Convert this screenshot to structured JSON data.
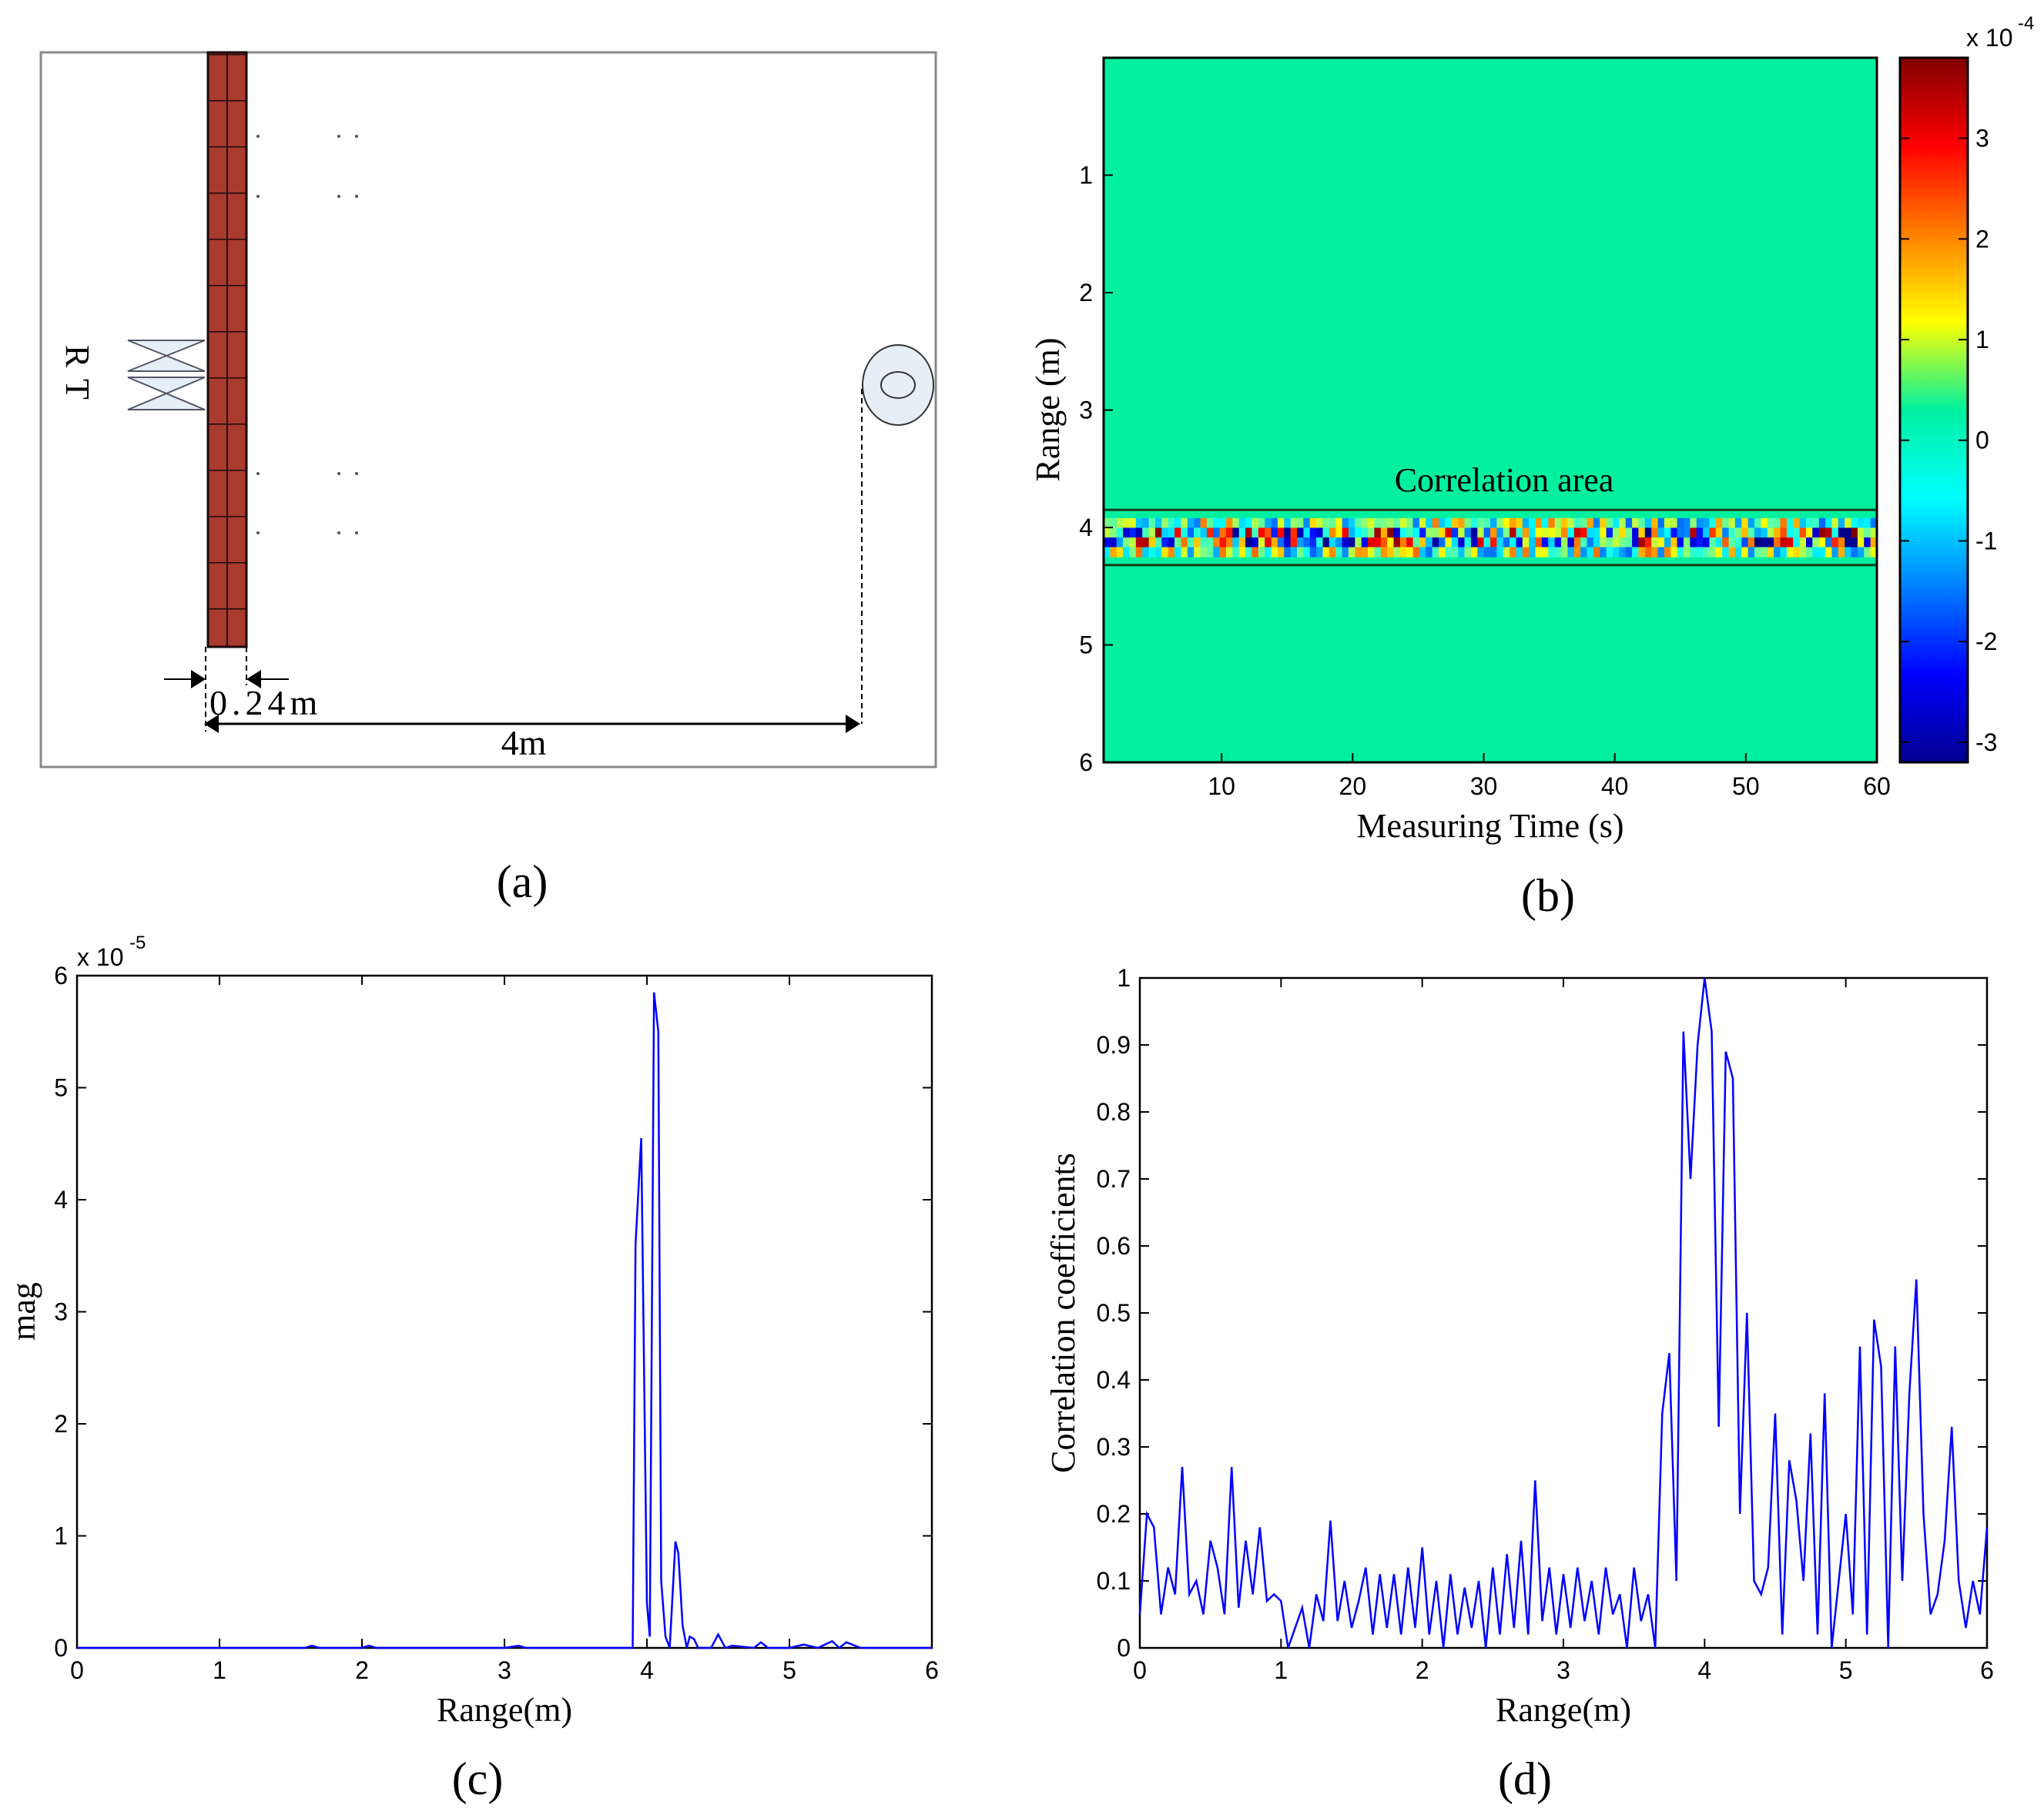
{
  "colors": {
    "wall": "#a83a2e",
    "antenna": "#e6eef8",
    "line": "#0000ff",
    "field": "#00f0a0"
  },
  "panel_a": {
    "caption": "(a)",
    "label_r": "R",
    "label_t": "T",
    "wall_width": "0.24m",
    "distance": "4m"
  },
  "panel_b": {
    "caption": "(b)",
    "annotation": "Correlation area",
    "colorbar_exponent": "x 10",
    "colorbar_power": "-4"
  },
  "panel_c": {
    "caption": "(c)",
    "exponent": "x 10",
    "power": "-5"
  },
  "panel_d": {
    "caption": "(d)"
  },
  "chart_data": [
    {
      "type": "heatmap",
      "panel": "b",
      "title": "",
      "xlabel": "Measuring Time (s)",
      "ylabel": "Range (m)",
      "xlim": [
        1,
        60
      ],
      "ylim": [
        0,
        6
      ],
      "xticks": [
        10,
        20,
        30,
        40,
        50,
        60
      ],
      "yticks": [
        1,
        2,
        3,
        4,
        5,
        6
      ],
      "colorbar": {
        "min": -3.2,
        "max": 3.8,
        "ticks": [
          -3,
          -2,
          -1,
          0,
          1,
          2,
          3
        ]
      },
      "correlation_area": {
        "range_min": 3.85,
        "range_max": 4.32
      },
      "strong_band_center_range": 4.08
    },
    {
      "type": "line",
      "panel": "c",
      "xlabel": "Range(m)",
      "ylabel": "mag",
      "xlim": [
        0,
        6
      ],
      "ylim": [
        0,
        6
      ],
      "xticks": [
        0,
        1,
        2,
        3,
        4,
        5,
        6
      ],
      "yticks": [
        0,
        1,
        2,
        3,
        4,
        5,
        6
      ],
      "series": [
        {
          "name": "mag",
          "x": [
            0,
            1.0,
            1.6,
            1.65,
            1.7,
            2.0,
            2.05,
            2.1,
            3.0,
            3.1,
            3.15,
            3.2,
            3.9,
            3.92,
            3.96,
            4.0,
            4.02,
            4.05,
            4.08,
            4.1,
            4.13,
            4.16,
            4.2,
            4.22,
            4.25,
            4.28,
            4.3,
            4.33,
            4.36,
            4.45,
            4.5,
            4.55,
            4.6,
            4.75,
            4.8,
            4.85,
            5.0,
            5.1,
            5.2,
            5.3,
            5.35,
            5.4,
            5.5,
            5.8,
            6.0
          ],
          "values": [
            0,
            0,
            0,
            0.02,
            0,
            0,
            0.02,
            0,
            0,
            0.02,
            0,
            0,
            0,
            3.6,
            4.55,
            0.4,
            0.1,
            5.85,
            5.5,
            0.6,
            0.1,
            0,
            0.95,
            0.85,
            0.2,
            0,
            0.1,
            0.08,
            0,
            0,
            0.12,
            0,
            0.02,
            0,
            0.05,
            0,
            0,
            0.03,
            0,
            0.06,
            0,
            0.05,
            0,
            0,
            0
          ]
        }
      ]
    },
    {
      "type": "line",
      "panel": "d",
      "xlabel": "Range(m)",
      "ylabel": "Correlation coefficients",
      "xlim": [
        0,
        6
      ],
      "ylim": [
        0,
        1
      ],
      "xticks": [
        0,
        1,
        2,
        3,
        4,
        5,
        6
      ],
      "yticks": [
        0,
        0.1,
        0.2,
        0.3,
        0.4,
        0.5,
        0.6,
        0.7,
        0.8,
        0.9,
        1
      ],
      "series": [
        {
          "name": "correlation",
          "x": [
            0,
            0.05,
            0.1,
            0.15,
            0.2,
            0.25,
            0.3,
            0.35,
            0.4,
            0.45,
            0.5,
            0.55,
            0.6,
            0.65,
            0.7,
            0.75,
            0.8,
            0.85,
            0.9,
            0.95,
            1.0,
            1.05,
            1.1,
            1.15,
            1.2,
            1.25,
            1.3,
            1.35,
            1.4,
            1.45,
            1.5,
            1.55,
            1.6,
            1.65,
            1.7,
            1.75,
            1.8,
            1.85,
            1.9,
            1.95,
            2.0,
            2.05,
            2.1,
            2.15,
            2.2,
            2.25,
            2.3,
            2.35,
            2.4,
            2.45,
            2.5,
            2.55,
            2.6,
            2.65,
            2.7,
            2.75,
            2.8,
            2.85,
            2.9,
            2.95,
            3.0,
            3.05,
            3.1,
            3.15,
            3.2,
            3.25,
            3.3,
            3.35,
            3.4,
            3.45,
            3.5,
            3.55,
            3.6,
            3.65,
            3.7,
            3.75,
            3.8,
            3.85,
            3.9,
            3.95,
            4.0,
            4.05,
            4.1,
            4.15,
            4.2,
            4.25,
            4.3,
            4.35,
            4.4,
            4.45,
            4.5,
            4.55,
            4.6,
            4.65,
            4.7,
            4.75,
            4.8,
            4.85,
            4.9,
            4.95,
            5.0,
            5.05,
            5.1,
            5.15,
            5.2,
            5.25,
            5.3,
            5.35,
            5.4,
            5.45,
            5.5,
            5.55,
            5.6,
            5.65,
            5.7,
            5.75,
            5.8,
            5.85,
            5.9,
            5.95,
            6.0
          ],
          "values": [
            0.05,
            0.2,
            0.18,
            0.05,
            0.12,
            0.08,
            0.27,
            0.08,
            0.1,
            0.05,
            0.16,
            0.12,
            0.05,
            0.27,
            0.06,
            0.16,
            0.08,
            0.18,
            0.07,
            0.08,
            0.07,
            0.0,
            0.03,
            0.06,
            0.0,
            0.08,
            0.04,
            0.19,
            0.04,
            0.1,
            0.03,
            0.07,
            0.12,
            0.02,
            0.11,
            0.03,
            0.11,
            0.02,
            0.12,
            0.03,
            0.15,
            0.02,
            0.1,
            0.0,
            0.11,
            0.02,
            0.09,
            0.03,
            0.1,
            0.0,
            0.12,
            0.02,
            0.14,
            0.03,
            0.16,
            0.02,
            0.25,
            0.04,
            0.12,
            0.02,
            0.11,
            0.03,
            0.12,
            0.04,
            0.1,
            0.02,
            0.12,
            0.05,
            0.08,
            0.0,
            0.12,
            0.04,
            0.08,
            0.0,
            0.35,
            0.44,
            0.1,
            0.92,
            0.7,
            0.9,
            1.0,
            0.92,
            0.33,
            0.89,
            0.85,
            0.2,
            0.5,
            0.1,
            0.08,
            0.12,
            0.35,
            0.02,
            0.28,
            0.22,
            0.1,
            0.32,
            0.02,
            0.38,
            0.0,
            0.1,
            0.2,
            0.05,
            0.45,
            0.02,
            0.49,
            0.42,
            0.0,
            0.45,
            0.1,
            0.38,
            0.55,
            0.2,
            0.05,
            0.08,
            0.16,
            0.33,
            0.1,
            0.03,
            0.1,
            0.05,
            0.18
          ]
        }
      ]
    }
  ]
}
